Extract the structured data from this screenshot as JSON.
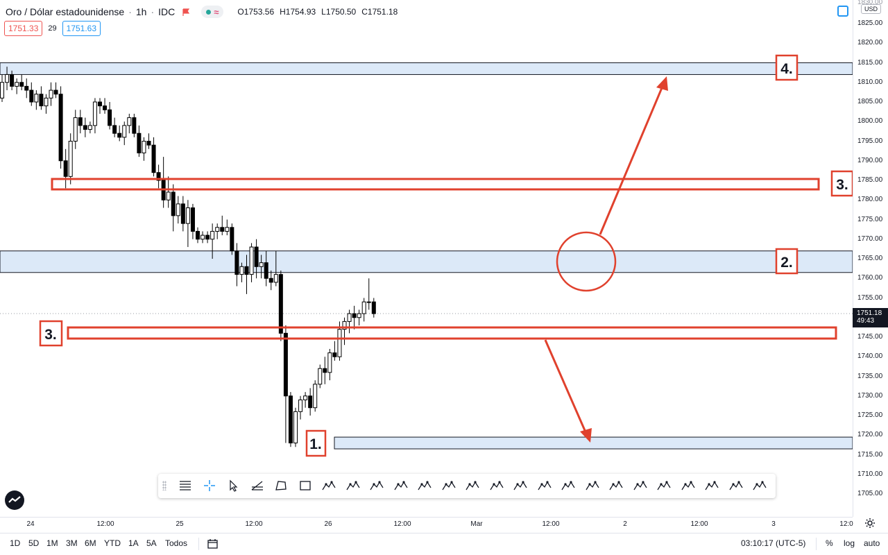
{
  "legend": {
    "symbol": "Oro / Dólar estadounidense",
    "interval": "1h",
    "exchange": "IDC",
    "delay_glyph": "≈",
    "open": "O1753.56",
    "high": "H1754.93",
    "low": "L1750.50",
    "close": "C1751.18",
    "sell_price": "1751.33",
    "spread": "29",
    "buy_price": "1751.63"
  },
  "price_scale": {
    "currency": "USD",
    "top_partial": "1830.00",
    "ticks": [
      "1825.00",
      "1820.00",
      "1815.00",
      "1810.00",
      "1805.00",
      "1800.00",
      "1795.00",
      "1790.00",
      "1785.00",
      "1780.00",
      "1775.00",
      "1770.00",
      "1765.00",
      "1760.00",
      "1755.00",
      "1750.00",
      "1745.00",
      "1740.00",
      "1735.00",
      "1730.00",
      "1725.00",
      "1720.00",
      "1715.00",
      "1710.00",
      "1705.00"
    ],
    "current_price": "1751.18",
    "countdown": "49:43"
  },
  "time_axis": {
    "labels": [
      "24",
      "12:00",
      "25",
      "12:00",
      "26",
      "12:00",
      "Mar",
      "12:00",
      "2",
      "12:00",
      "3",
      "12:0"
    ]
  },
  "bottom_bar": {
    "ranges": [
      "1D",
      "5D",
      "1M",
      "3M",
      "6M",
      "YTD",
      "1A",
      "5A",
      "Todos"
    ],
    "clock": "03:10:17 (UTC-5)",
    "percent": "%",
    "log": "log",
    "auto": "auto"
  },
  "annotations": {
    "label_1": "1.",
    "label_2": "2.",
    "label_3_right": "3.",
    "label_3_left": "3.",
    "label_4": "4."
  },
  "colors": {
    "zone_fill": "#dce9f8",
    "annotation_red": "#e0412d",
    "candle": "#000000"
  },
  "toolbar_icons": [
    "horizontal-lines-icon",
    "crosshair-icon",
    "cursor-icon",
    "pitchfan-icon",
    "polygon-icon",
    "rectangle-icon",
    "elliott-15-icon",
    "abcde-icon",
    "wxyz-icon",
    "abcd-icon",
    "wxy-icon",
    "pattern-icon",
    "trendline-icon",
    "horizontal-ray-icon",
    "extended-line-icon",
    "arrow-line-icon",
    "xabcd-icon",
    "fib-icon",
    "text-icon",
    "parallel-channel-icon",
    "price-range-icon",
    "head-shoulders-icon",
    "horizontal-line-icon",
    "triangle-pattern-icon",
    "ellipse-icon"
  ],
  "chart_data": {
    "type": "candlestick",
    "candles": [
      [
        1806,
        1812,
        1805,
        1810
      ],
      [
        1810,
        1814,
        1808,
        1812
      ],
      [
        1812,
        1813,
        1808,
        1809
      ],
      [
        1809,
        1811,
        1807,
        1810
      ],
      [
        1810,
        1812,
        1808,
        1809
      ],
      [
        1809,
        1811,
        1806,
        1808
      ],
      [
        1808,
        1810,
        1804,
        1805
      ],
      [
        1805,
        1808,
        1803,
        1807
      ],
      [
        1807,
        1809,
        1803,
        1804
      ],
      [
        1804,
        1807,
        1802,
        1806
      ],
      [
        1806,
        1810,
        1804,
        1808
      ],
      [
        1808,
        1810,
        1806,
        1807
      ],
      [
        1807,
        1809,
        1788,
        1790
      ],
      [
        1790,
        1793,
        1783,
        1786
      ],
      [
        1786,
        1797,
        1784,
        1795
      ],
      [
        1795,
        1803,
        1793,
        1801
      ],
      [
        1801,
        1803,
        1797,
        1799
      ],
      [
        1799,
        1801,
        1796,
        1798
      ],
      [
        1798,
        1800,
        1797,
        1799
      ],
      [
        1799,
        1806,
        1797,
        1805
      ],
      [
        1805,
        1806,
        1802,
        1804
      ],
      [
        1804,
        1806,
        1802,
        1803
      ],
      [
        1803,
        1805,
        1798,
        1799
      ],
      [
        1799,
        1801,
        1796,
        1797
      ],
      [
        1797,
        1799,
        1795,
        1796
      ],
      [
        1796,
        1800,
        1794,
        1799
      ],
      [
        1799,
        1802,
        1797,
        1801
      ],
      [
        1801,
        1802,
        1796,
        1797
      ],
      [
        1797,
        1799,
        1791,
        1792
      ],
      [
        1792,
        1796,
        1790,
        1795
      ],
      [
        1795,
        1797,
        1793,
        1794
      ],
      [
        1794,
        1796,
        1786,
        1787
      ],
      [
        1787,
        1789,
        1783,
        1785
      ],
      [
        1785,
        1791,
        1778,
        1780
      ],
      [
        1780,
        1786,
        1778,
        1782
      ],
      [
        1782,
        1784,
        1772,
        1776
      ],
      [
        1776,
        1781,
        1774,
        1779
      ],
      [
        1779,
        1781,
        1772,
        1774
      ],
      [
        1774,
        1780,
        1768,
        1778
      ],
      [
        1778,
        1779,
        1770,
        1772
      ],
      [
        1772,
        1773,
        1769,
        1770
      ],
      [
        1770,
        1772,
        1769,
        1771
      ],
      [
        1771,
        1772,
        1769,
        1770
      ],
      [
        1770,
        1774,
        1765,
        1772
      ],
      [
        1772,
        1774,
        1770,
        1773
      ],
      [
        1773,
        1776,
        1771,
        1772
      ],
      [
        1772,
        1775,
        1771,
        1773
      ],
      [
        1773,
        1774,
        1766,
        1767
      ],
      [
        1767,
        1769,
        1758,
        1761
      ],
      [
        1761,
        1764,
        1759,
        1763
      ],
      [
        1763,
        1766,
        1756,
        1761
      ],
      [
        1761,
        1769,
        1759,
        1768
      ],
      [
        1768,
        1770,
        1760,
        1763
      ],
      [
        1763,
        1766,
        1760,
        1764
      ],
      [
        1764,
        1767,
        1758,
        1760
      ],
      [
        1760,
        1762,
        1757,
        1759
      ],
      [
        1759,
        1767,
        1758,
        1761
      ],
      [
        1761,
        1762,
        1744,
        1746
      ],
      [
        1746,
        1748,
        1718,
        1730
      ],
      [
        1730,
        1731,
        1717,
        1718
      ],
      [
        1718,
        1727,
        1717,
        1726
      ],
      [
        1726,
        1730,
        1724,
        1729
      ],
      [
        1729,
        1731,
        1727,
        1730
      ],
      [
        1730,
        1732,
        1725,
        1727
      ],
      [
        1727,
        1734,
        1726,
        1733
      ],
      [
        1733,
        1738,
        1732,
        1737
      ],
      [
        1737,
        1740,
        1733,
        1736
      ],
      [
        1736,
        1742,
        1734,
        1741
      ],
      [
        1741,
        1744,
        1739,
        1740
      ],
      [
        1740,
        1749,
        1739,
        1747
      ],
      [
        1747,
        1750,
        1743,
        1749
      ],
      [
        1749,
        1752,
        1746,
        1751
      ],
      [
        1751,
        1753,
        1747,
        1750
      ],
      [
        1750,
        1752,
        1748,
        1751
      ],
      [
        1751,
        1755,
        1749,
        1754
      ],
      [
        1754,
        1760,
        1752,
        1754
      ],
      [
        1754,
        1755,
        1750,
        1751
      ]
    ],
    "zones": [
      {
        "label": "4.",
        "from": 1812,
        "to": 1815
      },
      {
        "label": "2.",
        "from": 1761.5,
        "to": 1767
      },
      {
        "label": "1.",
        "from": 1716.5,
        "to": 1719.5
      }
    ],
    "lines": [
      {
        "label": "3.",
        "price": 1784.5
      },
      {
        "label": "3.",
        "price": 1746.5
      }
    ],
    "current_price": 1751.18
  }
}
